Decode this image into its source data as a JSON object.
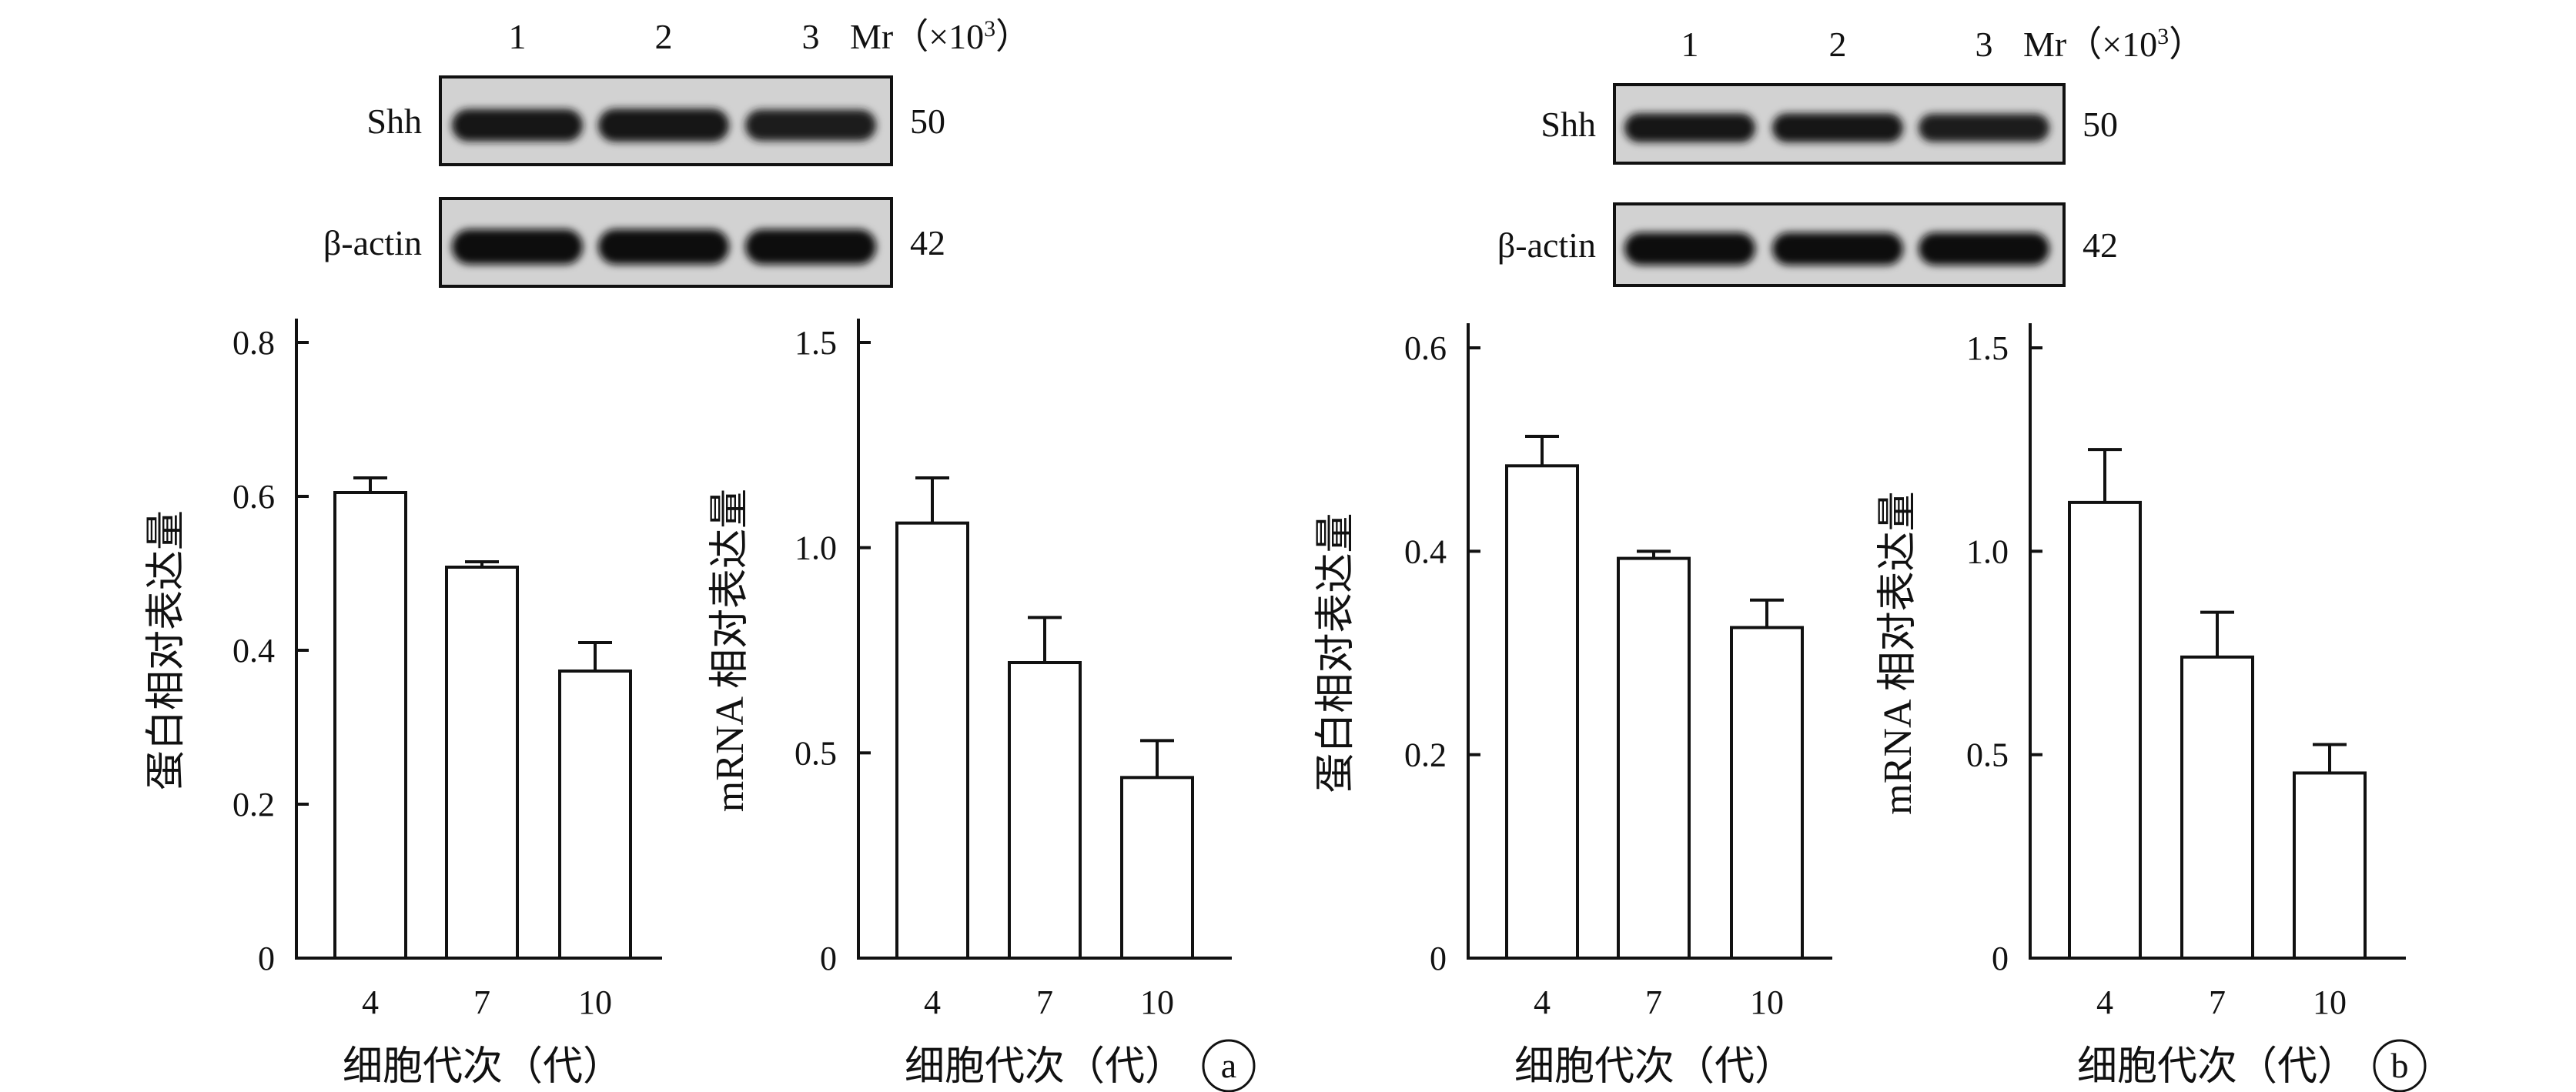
{
  "panels": [
    {
      "panel_label": "a",
      "blot": {
        "lanes": [
          "1",
          "2",
          "3"
        ],
        "mr_label": "Mr（×10",
        "mr_sup": "3",
        "mr_close": "）",
        "rows": [
          {
            "protein": "Shh",
            "mw": "50",
            "band_intensity": [
              0.8,
              0.85,
              0.72
            ]
          },
          {
            "protein": "β-actin",
            "mw": "42",
            "band_intensity": [
              1.0,
              1.0,
              1.0
            ]
          }
        ]
      }
    },
    {
      "panel_label": "b",
      "blot": {
        "lanes": [
          "1",
          "2",
          "3"
        ],
        "mr_label": "Mr（×10",
        "mr_sup": "3",
        "mr_close": "）",
        "rows": [
          {
            "protein": "Shh",
            "mw": "50",
            "band_intensity": [
              0.8,
              0.8,
              0.72
            ]
          },
          {
            "protein": "β-actin",
            "mw": "42",
            "band_intensity": [
              1.0,
              1.0,
              1.0
            ]
          }
        ]
      }
    }
  ],
  "chart_data": [
    {
      "type": "bar",
      "categories": [
        "4",
        "7",
        "10"
      ],
      "values": [
        0.605,
        0.508,
        0.373
      ],
      "errors": [
        0.019,
        0.007,
        0.037
      ],
      "xlabel": "细胞代次（代）",
      "ylabel": "蛋白相对表达量",
      "ylim": [
        0,
        0.8
      ],
      "yticks": [
        "0",
        "0.2",
        "0.4",
        "0.6",
        "0.8"
      ],
      "grid": false,
      "bar_fill": "#ffffff"
    },
    {
      "type": "bar",
      "categories": [
        "4",
        "7",
        "10"
      ],
      "values": [
        1.06,
        0.72,
        0.44
      ],
      "errors": [
        0.11,
        0.11,
        0.09
      ],
      "xlabel": "细胞代次（代）",
      "ylabel": "mRNA 相对表达量",
      "ylim": [
        0,
        1.5
      ],
      "yticks": [
        "0",
        "0.5",
        "1.0",
        "1.5"
      ],
      "grid": false,
      "bar_fill": "#ffffff"
    },
    {
      "type": "bar",
      "categories": [
        "4",
        "7",
        "10"
      ],
      "values": [
        0.484,
        0.393,
        0.325
      ],
      "errors": [
        0.029,
        0.007,
        0.027
      ],
      "xlabel": "细胞代次（代）",
      "ylabel": "蛋白相对表达量",
      "ylim": [
        0,
        0.6
      ],
      "yticks": [
        "0",
        "0.2",
        "0.4",
        "0.6"
      ],
      "grid": false,
      "bar_fill": "#ffffff"
    },
    {
      "type": "bar",
      "categories": [
        "4",
        "7",
        "10"
      ],
      "values": [
        1.12,
        0.74,
        0.455
      ],
      "errors": [
        0.13,
        0.11,
        0.07
      ],
      "xlabel": "细胞代次（代）",
      "ylabel": "mRNA 相对表达量",
      "ylim": [
        0,
        1.5
      ],
      "yticks": [
        "0",
        "0.5",
        "1.0",
        "1.5"
      ],
      "grid": false,
      "bar_fill": "#ffffff"
    }
  ]
}
